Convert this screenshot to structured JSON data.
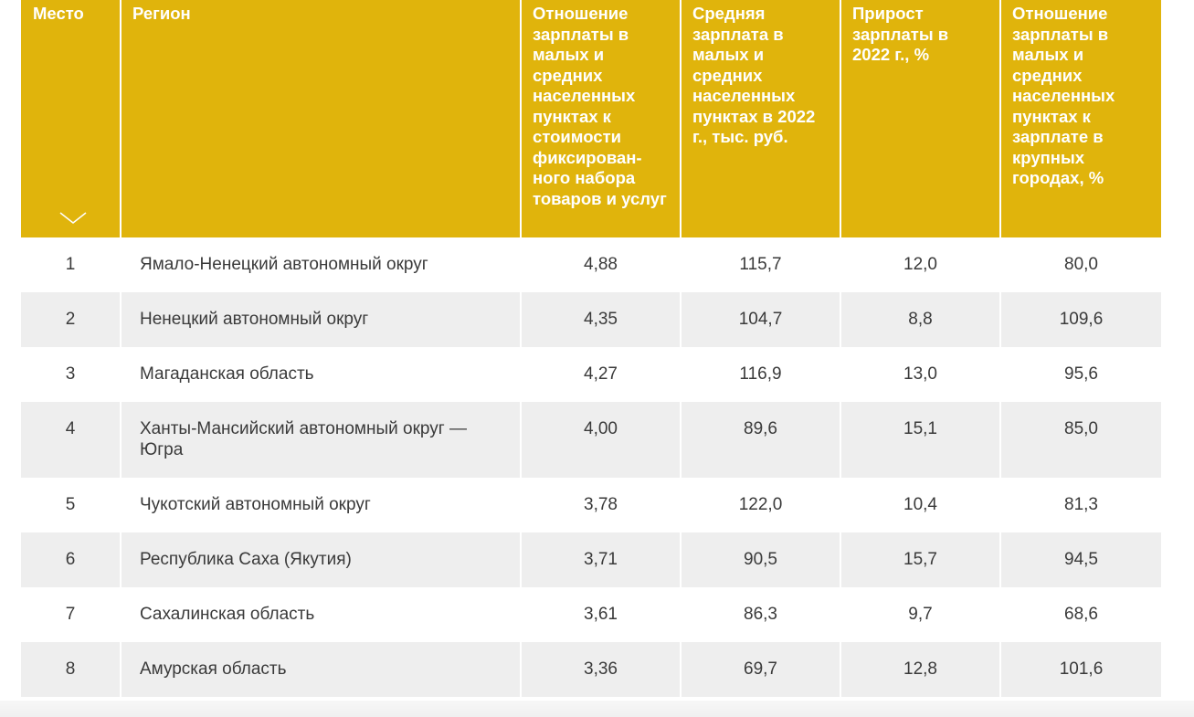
{
  "table": {
    "headers": {
      "place": "Место",
      "region": "Регион",
      "ratio_cost": "Отношение зарплаты в малых и средних населенных пунктах к стоимости фиксирован-ного набора товаров и услуг",
      "avg_salary": "Средняя зарплата в малых и средних населенных пунктах в 2022 г., тыс. руб.",
      "growth": "Прирост зарплаты в 2022 г., %",
      "ratio_big_cities": "Отношение зарплаты в малых и средних населенных пунктах к зарплате в крупных городах, %"
    },
    "sort_icon": "chevron-down-icon",
    "rows": [
      {
        "place": "1",
        "region": "Ямало-Ненецкий автономный округ",
        "ratio_cost": "4,88",
        "avg_salary": "115,7",
        "growth": "12,0",
        "ratio_big_cities": "80,0"
      },
      {
        "place": "2",
        "region": "Ненецкий автономный округ",
        "ratio_cost": "4,35",
        "avg_salary": "104,7",
        "growth": "8,8",
        "ratio_big_cities": "109,6"
      },
      {
        "place": "3",
        "region": "Магаданская область",
        "ratio_cost": "4,27",
        "avg_salary": "116,9",
        "growth": "13,0",
        "ratio_big_cities": "95,6"
      },
      {
        "place": "4",
        "region": "Ханты-Мансийский автономный округ — Югра",
        "ratio_cost": "4,00",
        "avg_salary": "89,6",
        "growth": "15,1",
        "ratio_big_cities": "85,0"
      },
      {
        "place": "5",
        "region": "Чукотский автономный округ",
        "ratio_cost": "3,78",
        "avg_salary": "122,0",
        "growth": "10,4",
        "ratio_big_cities": "81,3"
      },
      {
        "place": "6",
        "region": "Республика Саха (Якутия)",
        "ratio_cost": "3,71",
        "avg_salary": "90,5",
        "growth": "15,7",
        "ratio_big_cities": "94,5"
      },
      {
        "place": "7",
        "region": "Сахалинская область",
        "ratio_cost": "3,61",
        "avg_salary": "86,3",
        "growth": "9,7",
        "ratio_big_cities": "68,6"
      },
      {
        "place": "8",
        "region": "Амурская область",
        "ratio_cost": "3,36",
        "avg_salary": "69,7",
        "growth": "12,8",
        "ratio_big_cities": "101,6"
      }
    ]
  },
  "colors": {
    "header_bg": "#e0b40c",
    "header_text": "#ffffff",
    "stripe_bg": "#eeeeee",
    "body_text": "#3a3a3a"
  }
}
